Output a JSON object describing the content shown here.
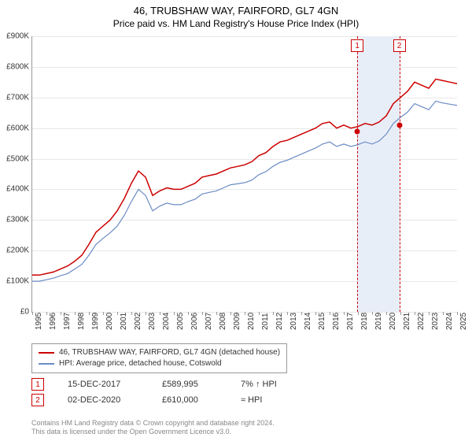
{
  "title": "46, TRUBSHAW WAY, FAIRFORD, GL7 4GN",
  "subtitle": "Price paid vs. HM Land Registry's House Price Index (HPI)",
  "chart": {
    "type": "line",
    "y_axis": {
      "min": 0,
      "max": 900000,
      "step": 100000,
      "labels": [
        "£0",
        "£100K",
        "£200K",
        "£300K",
        "£400K",
        "£500K",
        "£600K",
        "£700K",
        "£800K",
        "£900K"
      ],
      "label_fontsize": 10,
      "label_color": "#333333"
    },
    "x_axis": {
      "start_year": 1995,
      "end_year": 2025,
      "labels": [
        "1995",
        "1996",
        "1997",
        "1998",
        "1999",
        "2000",
        "2001",
        "2002",
        "2003",
        "2004",
        "2005",
        "2006",
        "2007",
        "2008",
        "2009",
        "2010",
        "2011",
        "2012",
        "2013",
        "2014",
        "2015",
        "2016",
        "2017",
        "2018",
        "2019",
        "2020",
        "2021",
        "2022",
        "2023",
        "2024",
        "2025"
      ],
      "rotation_deg": -90,
      "label_fontsize": 10
    },
    "grid_color": "#e8e8e8",
    "background_color": "#ffffff",
    "highlight_band_color": "#e8eef8",
    "highlight_dash_color": "#cc0000",
    "series": [
      {
        "name": "46, TRUBSHAW WAY, FAIRFORD, GL7 4GN (detached house)",
        "color": "#cc0000",
        "width": 1.5,
        "values": [
          120,
          120,
          125,
          130,
          140,
          150,
          165,
          185,
          220,
          260,
          280,
          300,
          330,
          370,
          420,
          460,
          440,
          380,
          395,
          405,
          400,
          400,
          410,
          420,
          440,
          445,
          450,
          460,
          470,
          475,
          480,
          490,
          510,
          520,
          540,
          555,
          560,
          570,
          580,
          590,
          600,
          615,
          620,
          600,
          610,
          600,
          605,
          615,
          610,
          620,
          640,
          680,
          700,
          720,
          750,
          740,
          730,
          760,
          755,
          750,
          745
        ]
      },
      {
        "name": "HPI: Average price, detached house, Cotswold",
        "color": "#6b8bc4",
        "width": 1.2,
        "values": [
          100,
          100,
          105,
          110,
          118,
          125,
          140,
          155,
          185,
          220,
          240,
          258,
          280,
          315,
          360,
          400,
          380,
          330,
          345,
          355,
          350,
          350,
          360,
          368,
          385,
          390,
          395,
          405,
          415,
          418,
          422,
          430,
          448,
          458,
          475,
          488,
          495,
          505,
          515,
          525,
          535,
          548,
          555,
          540,
          548,
          540,
          546,
          555,
          548,
          558,
          580,
          615,
          635,
          652,
          680,
          670,
          660,
          688,
          682,
          678,
          674
        ]
      }
    ],
    "sale_markers": [
      {
        "label": "1",
        "year": 2017.95,
        "value": 589995
      },
      {
        "label": "2",
        "year": 2020.92,
        "value": 610000
      }
    ],
    "marker_box_border": "#cc0000",
    "marker_box_bg": "#ffffff",
    "dot_color": "#cc0000"
  },
  "legend": {
    "border_color": "#999999",
    "items": [
      {
        "color": "#cc0000",
        "label": "46, TRUBSHAW WAY, FAIRFORD, GL7 4GN (detached house)"
      },
      {
        "color": "#6b8bc4",
        "label": "HPI: Average price, detached house, Cotswold"
      }
    ]
  },
  "sales": [
    {
      "marker": "1",
      "date": "15-DEC-2017",
      "price": "£589,995",
      "delta": "7% ↑ HPI"
    },
    {
      "marker": "2",
      "date": "02-DEC-2020",
      "price": "£610,000",
      "delta": "≈ HPI"
    }
  ],
  "footer": {
    "line1": "Contains HM Land Registry data © Crown copyright and database right 2024.",
    "line2": "This data is licensed under the Open Government Licence v3.0."
  }
}
